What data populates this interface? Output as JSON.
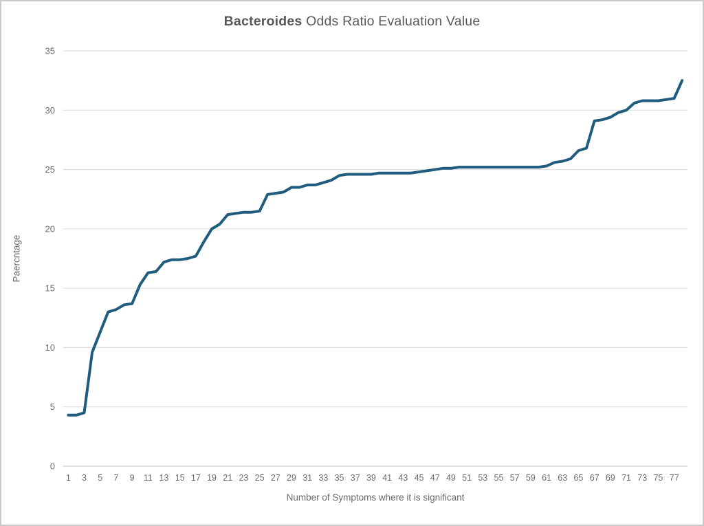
{
  "title": {
    "bold_part": "Bacteroides",
    "regular_part": " Odds Ratio Evaluation Value"
  },
  "colors": {
    "line": "#1F5C7E",
    "gridline": "#D9D9D9",
    "axis_line": "#BFBFBF",
    "title_text": "#595959",
    "tick_text": "#6A6A6A",
    "frame_border": "#C9C9C9"
  },
  "chart_data": {
    "type": "line",
    "title": "Bacteroides Odds Ratio Evaluation Value",
    "xlabel": "Number of Symptoms where it is significant",
    "ylabel": "Paercntage",
    "legend": "none",
    "grid": "horizontal",
    "ylim": [
      0,
      35
    ],
    "x_range": [
      1,
      78
    ],
    "y_ticks": [
      0,
      5,
      10,
      15,
      20,
      25,
      30,
      35
    ],
    "x_ticks": [
      1,
      3,
      5,
      7,
      9,
      11,
      13,
      15,
      17,
      19,
      21,
      23,
      25,
      27,
      29,
      31,
      33,
      35,
      37,
      39,
      41,
      43,
      45,
      47,
      49,
      51,
      53,
      55,
      57,
      59,
      61,
      63,
      65,
      67,
      69,
      71,
      73,
      75,
      77
    ],
    "series": [
      {
        "name": "Bacteroides",
        "color": "#1F5C7E",
        "x": [
          1,
          2,
          3,
          4,
          5,
          6,
          7,
          8,
          9,
          10,
          11,
          12,
          13,
          14,
          15,
          16,
          17,
          18,
          19,
          20,
          21,
          22,
          23,
          24,
          25,
          26,
          27,
          28,
          29,
          30,
          31,
          32,
          33,
          34,
          35,
          36,
          37,
          38,
          39,
          40,
          41,
          42,
          43,
          44,
          45,
          46,
          47,
          48,
          49,
          50,
          51,
          52,
          53,
          54,
          55,
          56,
          57,
          58,
          59,
          60,
          61,
          62,
          63,
          64,
          65,
          66,
          67,
          68,
          69,
          70,
          71,
          72,
          73,
          74,
          75,
          76,
          77,
          78
        ],
        "values": [
          4.3,
          4.3,
          4.5,
          9.6,
          11.3,
          13.0,
          13.2,
          13.6,
          13.7,
          15.3,
          16.3,
          16.4,
          17.2,
          17.4,
          17.4,
          17.5,
          17.7,
          18.9,
          20.0,
          20.4,
          21.2,
          21.3,
          21.4,
          21.4,
          21.5,
          22.9,
          23.0,
          23.1,
          23.5,
          23.5,
          23.7,
          23.7,
          23.9,
          24.1,
          24.5,
          24.6,
          24.6,
          24.6,
          24.6,
          24.7,
          24.7,
          24.7,
          24.7,
          24.7,
          24.8,
          24.9,
          25.0,
          25.1,
          25.1,
          25.2,
          25.2,
          25.2,
          25.2,
          25.2,
          25.2,
          25.2,
          25.2,
          25.2,
          25.2,
          25.2,
          25.3,
          25.6,
          25.7,
          25.9,
          26.6,
          26.8,
          29.1,
          29.2,
          29.4,
          29.8,
          30.0,
          30.6,
          30.8,
          30.8,
          30.8,
          30.9,
          31.0,
          32.5
        ]
      }
    ]
  }
}
